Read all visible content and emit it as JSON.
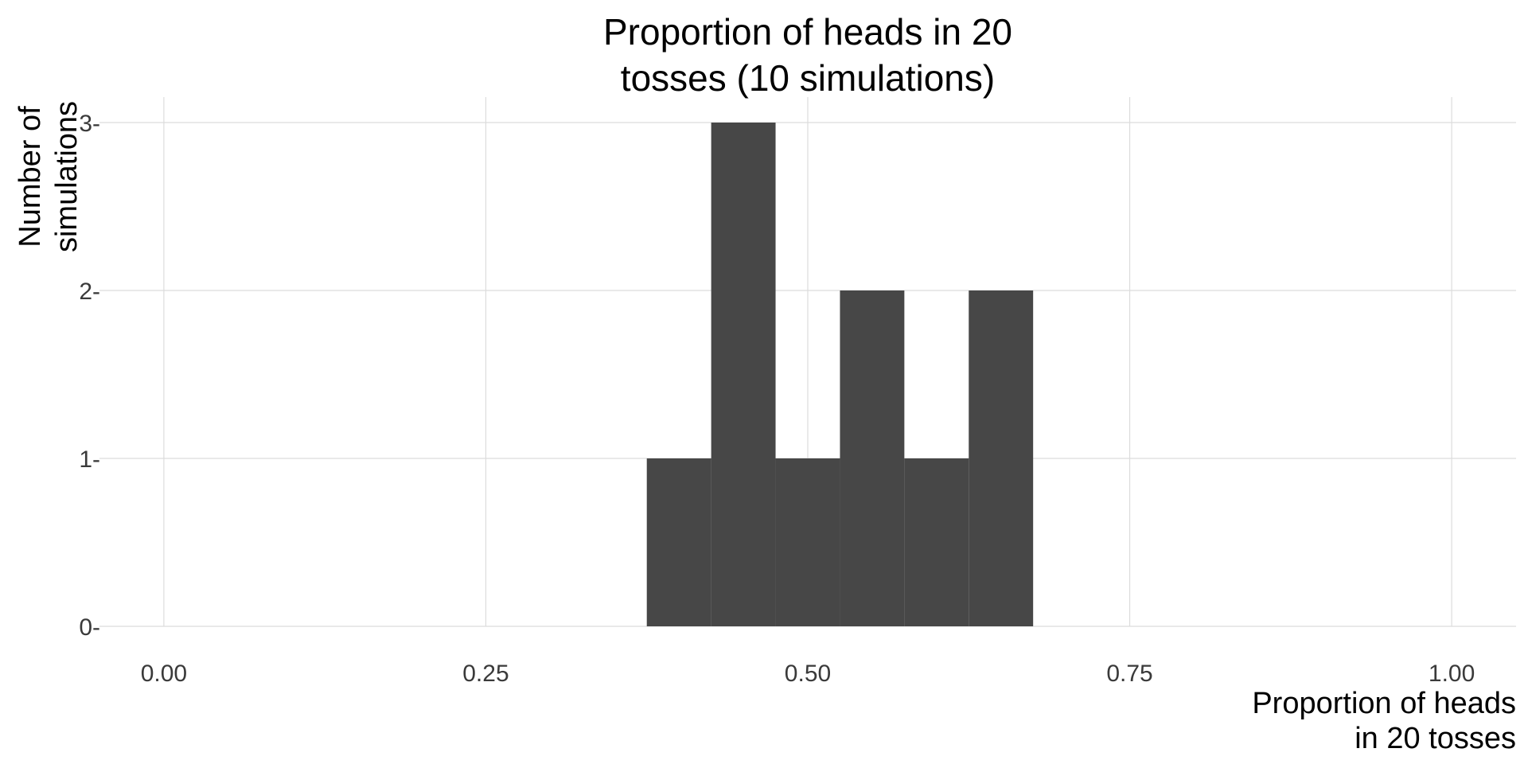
{
  "chart_data": {
    "type": "bar",
    "title_lines": [
      "Proportion of heads in 20",
      "tosses (10 simulations)"
    ],
    "xlabel_lines": [
      "Proportion of heads",
      "in 20 tosses"
    ],
    "ylabel_lines": [
      "Number of",
      "simulations"
    ],
    "xlim": [
      -0.05,
      1.05
    ],
    "ylim": [
      0,
      3
    ],
    "x_ticks": [
      {
        "value": 0.0,
        "label": "0.00"
      },
      {
        "value": 0.25,
        "label": "0.25"
      },
      {
        "value": 0.5,
        "label": "0.50"
      },
      {
        "value": 0.75,
        "label": "0.75"
      },
      {
        "value": 1.0,
        "label": "1.00"
      }
    ],
    "y_ticks": [
      {
        "value": 0,
        "label": "0-"
      },
      {
        "value": 1,
        "label": "1-"
      },
      {
        "value": 2,
        "label": "2-"
      },
      {
        "value": 3,
        "label": "3-"
      }
    ],
    "bin_width": 0.05,
    "bins": [
      {
        "center": 0.4,
        "count": 1
      },
      {
        "center": 0.45,
        "count": 3
      },
      {
        "center": 0.5,
        "count": 1
      },
      {
        "center": 0.55,
        "count": 2
      },
      {
        "center": 0.6,
        "count": 1
      },
      {
        "center": 0.65,
        "count": 2
      }
    ],
    "bar_color": "#474747",
    "grid": true,
    "legend": "none"
  }
}
